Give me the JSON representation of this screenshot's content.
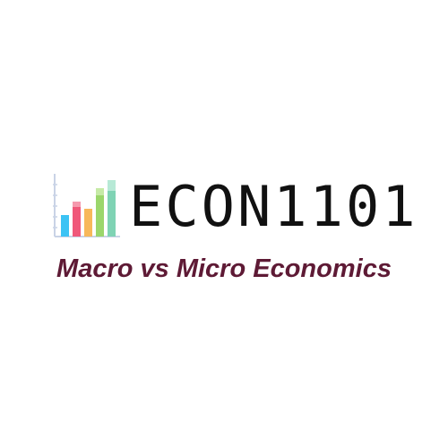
{
  "logo": {
    "title": "ECON1101",
    "subtitle": "Macro vs Micro Economics",
    "icon_name": "bar-chart-icon",
    "bar_colors": [
      "#3cc3f4",
      "#f0587a",
      "#f7b85a",
      "#9bd66b",
      "#7fd3b4"
    ],
    "subtitle_color": "#5e1a35",
    "title_color": "#111111"
  }
}
